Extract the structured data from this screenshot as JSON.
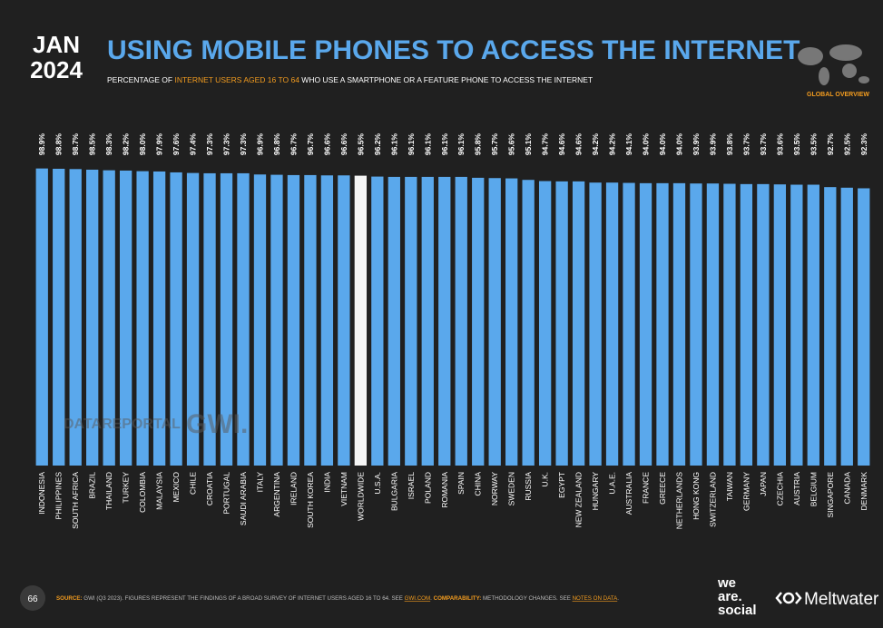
{
  "header": {
    "date_month": "JAN",
    "date_year": "2024",
    "badge": "GLOBAL OVERVIEW",
    "page_number": "66"
  },
  "chart_data": {
    "type": "bar",
    "title": "USING MOBILE PHONES TO ACCESS THE INTERNET",
    "subtitle": [
      "PERCENTAGE OF ",
      "INTERNET USERS AGED 16 TO 64",
      " WHO USE A SMARTPHONE OR A FEATURE PHONE TO ACCESS THE INTERNET"
    ],
    "categories": [
      "INDONESIA",
      "PHILIPPINES",
      "SOUTH AFRICA",
      "BRAZIL",
      "THAILAND",
      "TURKEY",
      "COLOMBIA",
      "MALAYSIA",
      "MEXICO",
      "CHILE",
      "CROATIA",
      "PORTUGAL",
      "SAUDI ARABIA",
      "ITALY",
      "ARGENTINA",
      "IRELAND",
      "SOUTH KOREA",
      "INDIA",
      "VIETNAM",
      "WORLDWIDE",
      "U.S.A.",
      "BULGARIA",
      "ISRAEL",
      "POLAND",
      "ROMANIA",
      "SPAIN",
      "CHINA",
      "NORWAY",
      "SWEDEN",
      "RUSSIA",
      "U.K.",
      "EGYPT",
      "NEW ZEALAND",
      "HUNGARY",
      "U.A.E.",
      "AUSTRALIA",
      "FRANCE",
      "GREECE",
      "NETHERLANDS",
      "HONG KONG",
      "SWITZERLAND",
      "TAIWAN",
      "GERMANY",
      "JAPAN",
      "CZECHIA",
      "AUSTRIA",
      "BELGIUM",
      "SINGAPORE",
      "CANADA",
      "DENMARK"
    ],
    "values": [
      98.9,
      98.8,
      98.7,
      98.5,
      98.3,
      98.2,
      98.0,
      97.9,
      97.6,
      97.4,
      97.3,
      97.3,
      97.3,
      96.9,
      96.8,
      96.7,
      96.7,
      96.6,
      96.6,
      96.5,
      96.2,
      96.1,
      96.1,
      96.1,
      96.1,
      96.1,
      95.8,
      95.7,
      95.6,
      95.1,
      94.7,
      94.6,
      94.6,
      94.2,
      94.2,
      94.1,
      94.0,
      94.0,
      94.0,
      93.9,
      93.9,
      93.8,
      93.7,
      93.7,
      93.6,
      93.5,
      93.5,
      92.7,
      92.5,
      92.3
    ],
    "value_labels": [
      "98.9%",
      "98.8%",
      "98.7%",
      "98.5%",
      "98.3%",
      "98.2%",
      "98.0%",
      "97.9%",
      "97.6%",
      "97.4%",
      "97.3%",
      "97.3%",
      "97.3%",
      "96.9%",
      "96.8%",
      "96.7%",
      "96.7%",
      "96.6%",
      "96.6%",
      "96.5%",
      "96.2%",
      "96.1%",
      "96.1%",
      "96.1%",
      "96.1%",
      "96.1%",
      "95.8%",
      "95.7%",
      "95.6%",
      "95.1%",
      "94.7%",
      "94.6%",
      "94.6%",
      "94.2%",
      "94.2%",
      "94.1%",
      "94.0%",
      "94.0%",
      "94.0%",
      "93.9%",
      "93.9%",
      "93.8%",
      "93.7%",
      "93.7%",
      "93.6%",
      "93.5%",
      "93.5%",
      "92.7%",
      "92.5%",
      "92.3%"
    ],
    "colors": [
      "#5aa8ec",
      "#5aa8ec",
      "#5aa8ec",
      "#5aa8ec",
      "#5aa8ec",
      "#5aa8ec",
      "#5aa8ec",
      "#5aa8ec",
      "#5aa8ec",
      "#5aa8ec",
      "#5aa8ec",
      "#5aa8ec",
      "#5aa8ec",
      "#5aa8ec",
      "#5aa8ec",
      "#5aa8ec",
      "#5aa8ec",
      "#5aa8ec",
      "#5aa8ec",
      "#f4f4f4",
      "#5aa8ec",
      "#5aa8ec",
      "#5aa8ec",
      "#5aa8ec",
      "#5aa8ec",
      "#5aa8ec",
      "#5aa8ec",
      "#5aa8ec",
      "#5aa8ec",
      "#5aa8ec",
      "#5aa8ec",
      "#5aa8ec",
      "#5aa8ec",
      "#5aa8ec",
      "#5aa8ec",
      "#5aa8ec",
      "#5aa8ec",
      "#5aa8ec",
      "#5aa8ec",
      "#5aa8ec",
      "#5aa8ec",
      "#5aa8ec",
      "#5aa8ec",
      "#5aa8ec",
      "#5aa8ec",
      "#5aa8ec",
      "#5aa8ec",
      "#5aa8ec",
      "#5aa8ec",
      "#5aa8ec"
    ],
    "ylim": [
      0,
      100
    ]
  },
  "watermark": [
    "DATAREPORTAL",
    "GWI."
  ],
  "footer": {
    "source": [
      "SOURCE:",
      " GWI (Q3 2023). FIGURES REPRESENT THE FINDINGS OF A BROAD SURVEY OF INTERNET USERS AGED 16 TO 64. SEE ",
      "GWI.COM",
      ". ",
      "COMPARABILITY:",
      " METHODOLOGY CHANGES. SEE ",
      "NOTES ON DATA",
      "."
    ],
    "logos": [
      "we",
      "are.",
      "social",
      "Meltwater"
    ]
  }
}
